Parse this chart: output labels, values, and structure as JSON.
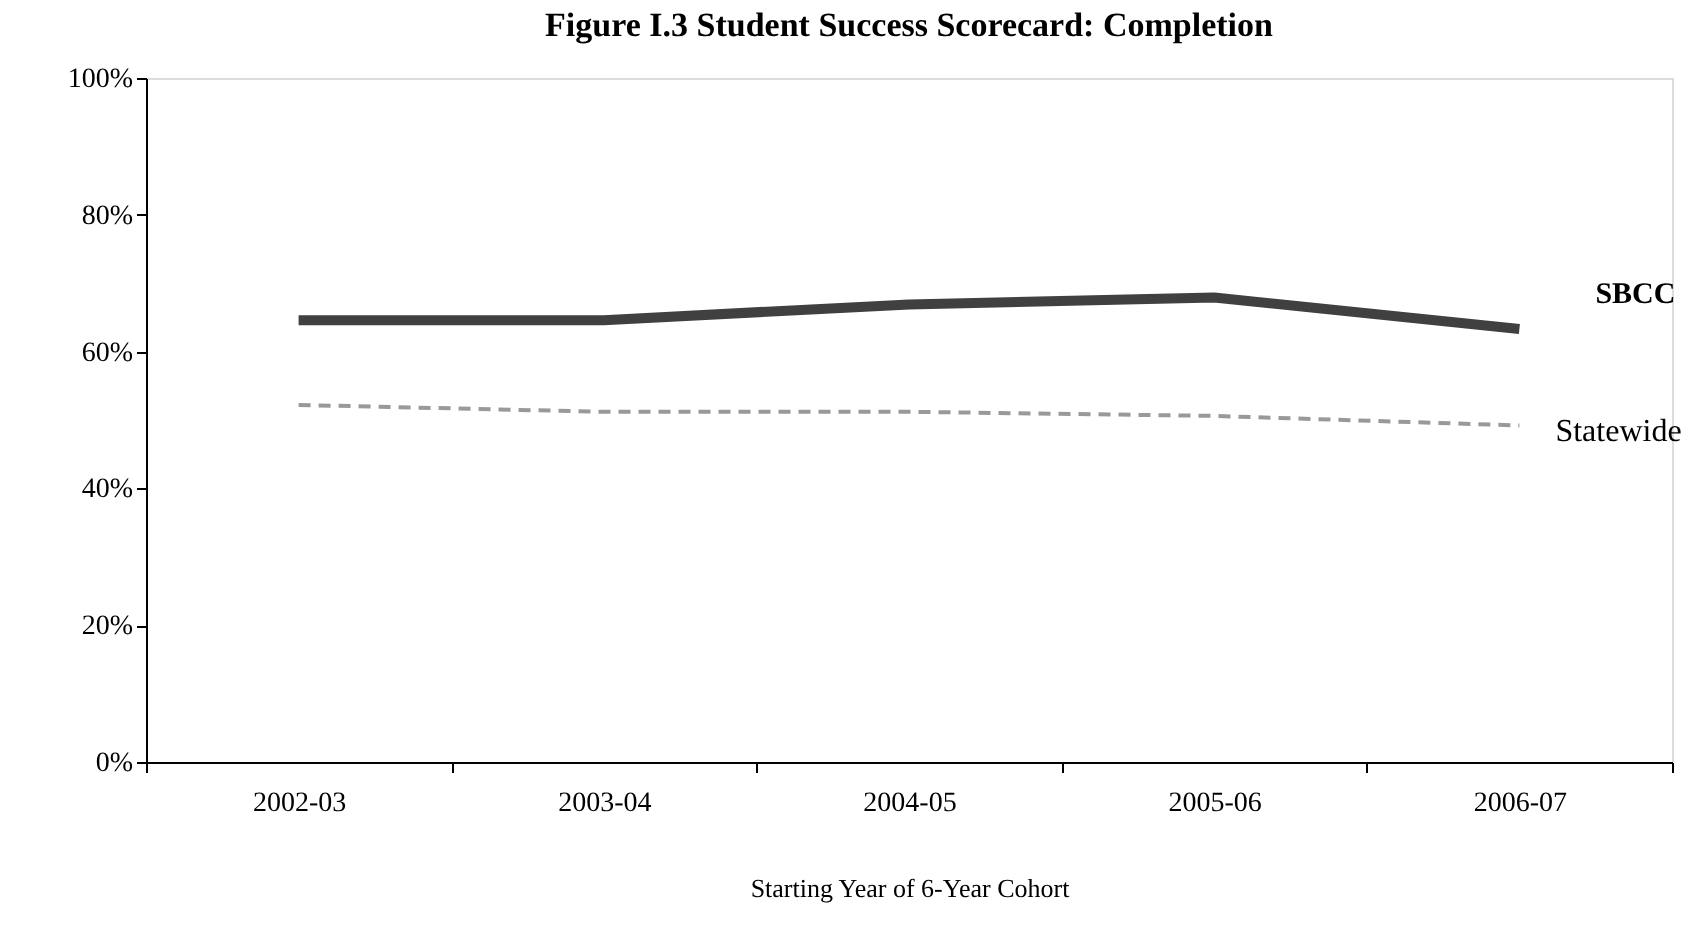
{
  "chart_data": {
    "type": "line",
    "title": "Figure I.3 Student Success Scorecard:  Completion",
    "xlabel": "Starting Year of 6-Year Cohort",
    "categories": [
      "2002-03",
      "2003-04",
      "2004-05",
      "2005-06",
      "2006-07"
    ],
    "series": [
      {
        "name": "SBCC",
        "color": "#404040",
        "line_style": "solid",
        "values": [
          64.6,
          64.6,
          66.9,
          67.9,
          63.3
        ]
      },
      {
        "name": "Statewide",
        "color": "#999999",
        "line_style": "dashed",
        "values": [
          52.2,
          51.2,
          51.2,
          50.6,
          49.2
        ]
      }
    ],
    "ylim": [
      0,
      100
    ],
    "yticks": [
      {
        "value": 0,
        "label": "0%"
      },
      {
        "value": 20,
        "label": "20%"
      },
      {
        "value": 40,
        "label": "40%"
      },
      {
        "value": 60,
        "label": "60%"
      },
      {
        "value": 80,
        "label": "80%"
      },
      {
        "value": 100,
        "label": "100%"
      }
    ],
    "grid": false,
    "marker": "none"
  }
}
